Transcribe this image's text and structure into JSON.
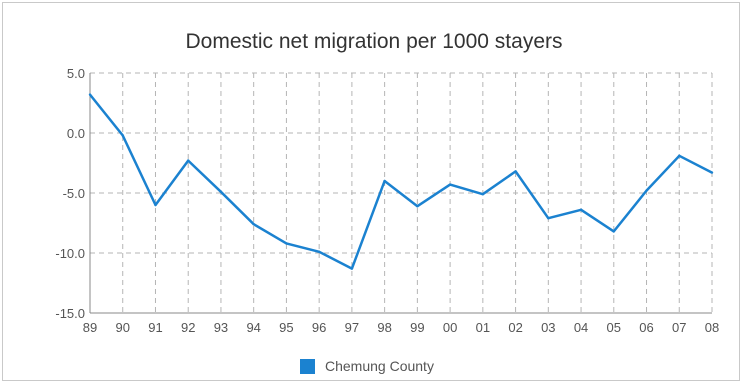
{
  "chart_data": {
    "type": "line",
    "title": "Domestic net migration per 1000 stayers",
    "xlabel": "",
    "ylabel": "",
    "categories": [
      "89",
      "90",
      "91",
      "92",
      "93",
      "94",
      "95",
      "96",
      "97",
      "98",
      "99",
      "00",
      "01",
      "02",
      "03",
      "04",
      "05",
      "06",
      "07",
      "08"
    ],
    "series": [
      {
        "name": "Chemung County",
        "color": "#1b82d0",
        "values": [
          3.2,
          -0.2,
          -6.0,
          -2.3,
          -4.9,
          -7.6,
          -9.2,
          -9.9,
          -11.3,
          -4.0,
          -6.1,
          -4.3,
          -5.1,
          -3.2,
          -7.1,
          -6.4,
          -8.2,
          -4.8,
          -1.9,
          -3.3
        ]
      }
    ],
    "ylim": [
      -15,
      5
    ],
    "yticks": [
      "5.0",
      "0.0",
      "-5.0",
      "-10.0",
      "-15.0"
    ],
    "ytick_values": [
      5,
      0,
      -5,
      -10,
      -15
    ],
    "grid": true,
    "legend_position": "bottom-center"
  }
}
